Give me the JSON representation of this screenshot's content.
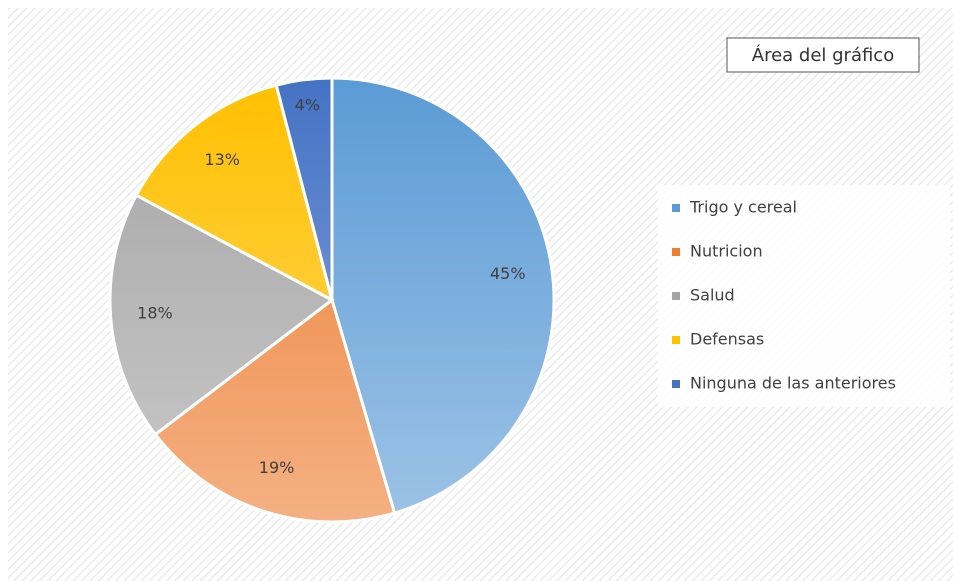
{
  "tooltip": "Área del gráfico",
  "chart_data": {
    "type": "pie",
    "categories": [
      "Trigo y cereal",
      "Nutricion",
      "Salud",
      "Defensas",
      "Ninguna de las anteriores"
    ],
    "values": [
      45,
      19,
      18,
      13,
      4
    ],
    "value_labels": [
      "45%",
      "19%",
      "18%",
      "13%",
      "4%"
    ],
    "colors": [
      "#5b9bd5",
      "#ed7d31",
      "#a5a5a5",
      "#ffc000",
      "#4472c4"
    ],
    "legend": "right"
  }
}
